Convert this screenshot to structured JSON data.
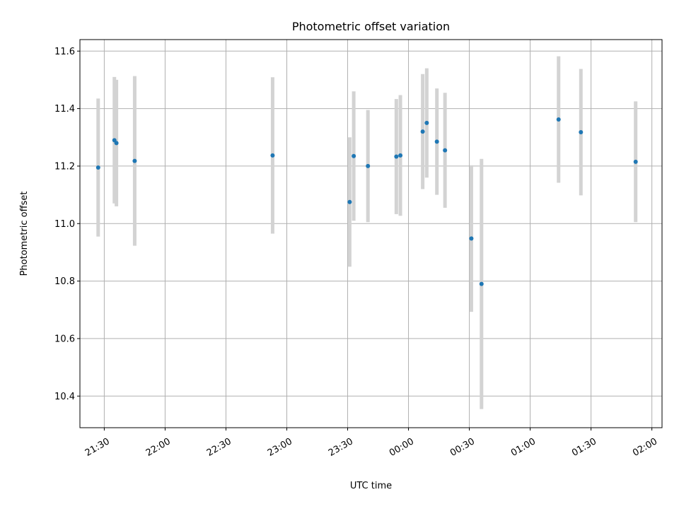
{
  "chart_data": {
    "type": "scatter",
    "title": "Photometric offset variation",
    "xlabel": "UTC time",
    "ylabel": "Photometric offset",
    "grid": true,
    "x_ticks": [
      "21:30",
      "22:00",
      "22:30",
      "23:00",
      "23:30",
      "00:00",
      "00:30",
      "01:00",
      "01:30",
      "02:00"
    ],
    "y_ticks": [
      "10.4",
      "10.6",
      "10.8",
      "11.0",
      "11.2",
      "11.4",
      "11.6"
    ],
    "xlim": [
      "21:18",
      "02:05"
    ],
    "ylim": [
      10.29,
      11.64
    ],
    "colors": {
      "point": "#1f77b4",
      "errorbar": "#d3d3d3"
    },
    "points": [
      {
        "x": "21:27",
        "y": 11.195,
        "err": 0.24
      },
      {
        "x": "21:35",
        "y": 11.29,
        "err": 0.22
      },
      {
        "x": "21:36",
        "y": 11.28,
        "err": 0.22
      },
      {
        "x": "21:45",
        "y": 11.218,
        "err": 0.295
      },
      {
        "x": "22:53",
        "y": 11.237,
        "err": 0.272
      },
      {
        "x": "23:31",
        "y": 11.075,
        "err": 0.225
      },
      {
        "x": "23:33",
        "y": 11.235,
        "err": 0.225
      },
      {
        "x": "23:40",
        "y": 11.2,
        "err": 0.195
      },
      {
        "x": "23:54",
        "y": 11.233,
        "err": 0.2
      },
      {
        "x": "23:56",
        "y": 11.237,
        "err": 0.21
      },
      {
        "x": "00:07",
        "y": 11.32,
        "err": 0.2
      },
      {
        "x": "00:09",
        "y": 11.35,
        "err": 0.19
      },
      {
        "x": "00:14",
        "y": 11.285,
        "err": 0.185
      },
      {
        "x": "00:18",
        "y": 11.255,
        "err": 0.2
      },
      {
        "x": "00:31",
        "y": 10.948,
        "err": 0.255
      },
      {
        "x": "00:36",
        "y": 10.79,
        "err": 0.435
      },
      {
        "x": "01:14",
        "y": 11.362,
        "err": 0.22
      },
      {
        "x": "01:25",
        "y": 11.318,
        "err": 0.22
      },
      {
        "x": "01:52",
        "y": 11.215,
        "err": 0.21
      }
    ]
  }
}
